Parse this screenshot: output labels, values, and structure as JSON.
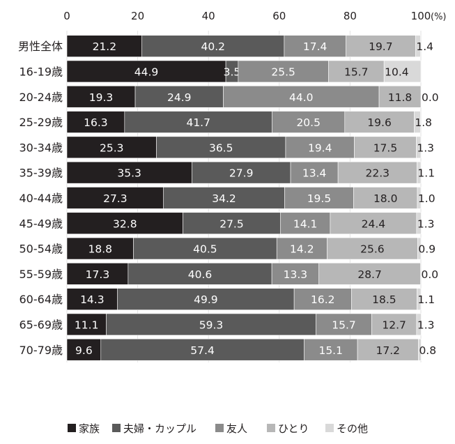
{
  "chart_data": {
    "type": "bar",
    "orientation": "horizontal",
    "stacked": true,
    "xlim": [
      0,
      100
    ],
    "x_ticks": [
      0,
      20,
      40,
      60,
      80,
      100
    ],
    "x_unit": "(%)",
    "grid": true,
    "legend_position": "bottom",
    "categories": [
      "男性全体",
      "16-19歳",
      "20-24歳",
      "25-29歳",
      "30-34歳",
      "35-39歳",
      "40-44歳",
      "45-49歳",
      "50-54歳",
      "55-59歳",
      "60-64歳",
      "65-69歳",
      "70-79歳"
    ],
    "series": [
      {
        "name": "家族",
        "color": "#231f20",
        "values": [
          21.2,
          44.9,
          19.3,
          16.3,
          25.3,
          35.3,
          27.3,
          32.8,
          18.8,
          17.3,
          14.3,
          11.1,
          9.6
        ]
      },
      {
        "name": "夫婦・カップル",
        "color": "#5a5a5a",
        "values": [
          40.2,
          3.5,
          24.9,
          41.7,
          36.5,
          27.9,
          34.2,
          27.5,
          40.5,
          40.6,
          49.9,
          59.3,
          57.4
        ]
      },
      {
        "name": "友人",
        "color": "#8b8b8b",
        "values": [
          17.4,
          25.5,
          44.0,
          20.5,
          19.4,
          13.4,
          19.5,
          14.1,
          14.2,
          13.3,
          16.2,
          15.7,
          15.1
        ]
      },
      {
        "name": "ひとり",
        "color": "#b7b7b7",
        "values": [
          19.7,
          15.7,
          11.8,
          19.6,
          17.5,
          22.3,
          18.0,
          24.4,
          25.6,
          28.7,
          18.5,
          12.7,
          17.2
        ]
      },
      {
        "name": "その他",
        "color": "#d9d9d9",
        "values": [
          1.4,
          10.4,
          0.0,
          1.8,
          1.3,
          1.1,
          1.0,
          1.3,
          0.9,
          0.0,
          1.1,
          1.3,
          0.8
        ]
      }
    ]
  }
}
